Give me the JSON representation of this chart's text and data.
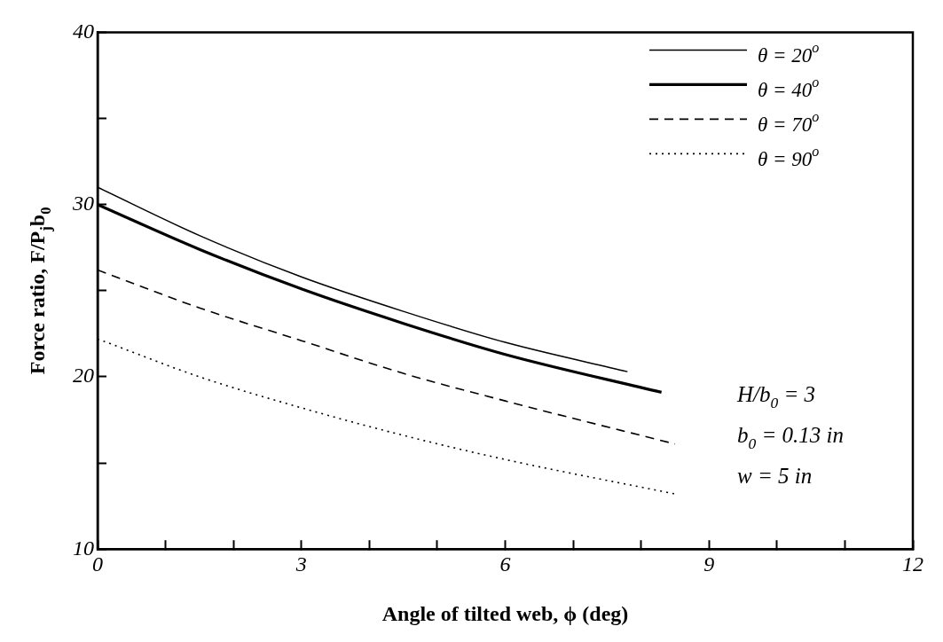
{
  "chart_data": {
    "type": "line",
    "xlabel": "Angle of tilted web, ϕ (deg)",
    "ylabel": "Force ratio, F/P$_{j}$b$_{0}$",
    "xlim": [
      0,
      12
    ],
    "xticks": [
      0,
      {
        "value": 1,
        "label": null
      },
      {
        "value": 2,
        "label": null
      },
      3,
      {
        "value": 4,
        "label": null
      },
      {
        "value": 5,
        "label": null
      },
      6,
      {
        "value": 7,
        "label": null
      },
      {
        "value": 8,
        "label": null
      },
      9,
      {
        "value": 10,
        "label": null
      },
      {
        "value": 11,
        "label": null
      },
      12
    ],
    "ylim": [
      10,
      40
    ],
    "yticks": [
      10,
      {
        "value": 15,
        "label": null
      },
      20,
      {
        "value": 25,
        "label": null
      },
      30,
      {
        "value": 35,
        "label": null
      },
      40
    ],
    "grid": false,
    "legend": "top right",
    "marker": "none",
    "series": [
      {
        "name": "θ = 20$^{o}$",
        "color": "#000000",
        "line_style": "solid",
        "x": [
          0,
          1.5,
          3,
          4.5,
          6,
          7.8
        ],
        "values": [
          31.0,
          28.2,
          25.8,
          23.8,
          22.0,
          20.3
        ]
      },
      {
        "name": "θ = 40$^{o}$",
        "color": "#000000",
        "line_style": "solid",
        "x": [
          0,
          1.5,
          3,
          4.5,
          6,
          8.3
        ],
        "values": [
          30.0,
          27.4,
          25.1,
          23.1,
          21.3,
          19.1
        ]
      },
      {
        "name": "θ = 70$^{o}$",
        "color": "#000000",
        "line_style": "dashed",
        "x": [
          0,
          1.5,
          3,
          4.5,
          6,
          8.5
        ],
        "values": [
          26.2,
          24.0,
          22.1,
          20.2,
          18.6,
          16.1
        ]
      },
      {
        "name": "θ = 90$^{o}$",
        "color": "#000000",
        "line_style": "dotted",
        "x": [
          0,
          1.5,
          3,
          4.5,
          6,
          8.5
        ],
        "values": [
          22.2,
          20.0,
          18.2,
          16.6,
          15.2,
          13.2
        ]
      }
    ],
    "annotations": [
      "H/b$_{0}$ = 3",
      "b$_{0}$ = 0.13 in",
      "w = 5 in"
    ]
  }
}
